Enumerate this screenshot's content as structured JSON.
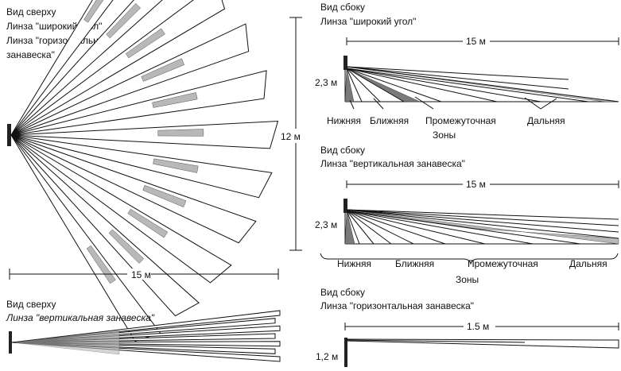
{
  "top_view_wide": {
    "title_lines": [
      "Вид сверху",
      "Линза \"широкий угол\"",
      "Линза \"горизонтальная",
      "занавеска\""
    ],
    "width_label": "15 м",
    "height_label": "12 м"
  },
  "side_view_wide": {
    "title_lines": [
      "Вид сбоку",
      "Линза \"широкий угол\""
    ],
    "range_label": "15 м",
    "height_label": "2,3 м",
    "zones": [
      "Нижняя",
      "Ближняя",
      "Промежуточная",
      "Дальняя"
    ],
    "zones_caption": "Зоны"
  },
  "side_view_vertical": {
    "title_lines": [
      "Вид сбоку",
      "Линза \"вертикальная занавеска\""
    ],
    "range_label": "15 м",
    "height_label": "2,3 м",
    "zones": [
      "Нижняя",
      "Ближняя",
      "Промежуточная",
      "Дальняя"
    ],
    "zones_caption": "Зоны"
  },
  "top_view_vertical": {
    "title_lines": [
      "Вид сверху",
      "Линза \"вертикальная занавеска\""
    ]
  },
  "side_view_horizontal": {
    "title_lines": [
      "Вид сбоку",
      "Линза \"горизонтальная занавеска\""
    ],
    "range_label": "1.5 м",
    "height_label": "1,2 м"
  }
}
